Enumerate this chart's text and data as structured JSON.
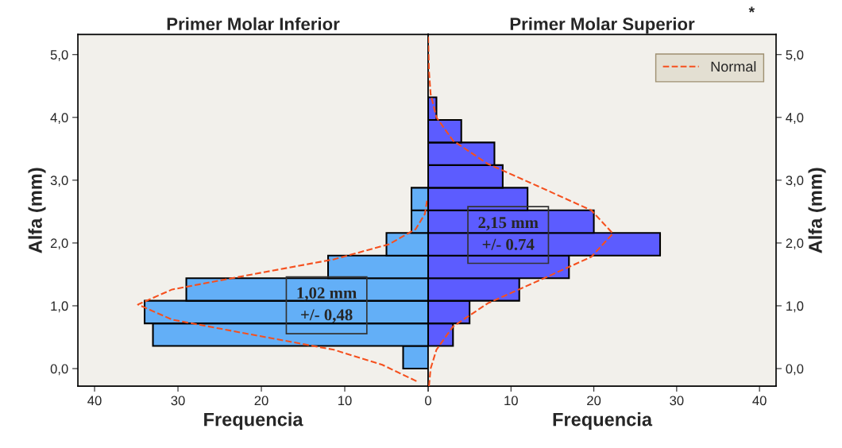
{
  "chart_data": [
    {
      "type": "histogram",
      "orientation": "horizontal",
      "title": "Primer Molar Inferior",
      "xlabel": "Frequencia",
      "ylabel": "Alfa (mm)",
      "series": [
        {
          "bins": [
            0,
            0.36,
            0.72,
            1.08,
            1.44,
            1.8,
            2.16,
            2.52,
            2.88
          ],
          "values": [
            3,
            33,
            34,
            29,
            12,
            5,
            2,
            2
          ],
          "color": "#63aff7"
        },
        {
          "type": "line",
          "color": "#f5501e",
          "line_style": "dashed",
          "x": [
            -0.2,
            0.06,
            0.3,
            0.54,
            0.78,
            1.02,
            1.26,
            1.5,
            1.74,
            1.98,
            2.22,
            2.46,
            2.7
          ],
          "values": [
            1.4,
            5.5,
            11.3,
            21.1,
            30.7,
            34.8,
            30.7,
            21.1,
            11.3,
            4.7,
            1.5,
            0.4,
            0.1
          ]
        }
      ],
      "xlim": [
        42,
        0
      ],
      "xticks": [
        40,
        30,
        20,
        10,
        0
      ],
      "ylim": [
        -0.28,
        5.32
      ],
      "yticks": [
        {
          "value": 0,
          "label": "0,0"
        },
        {
          "value": 1,
          "label": "1,0"
        },
        {
          "value": 2,
          "label": "2,0"
        },
        {
          "value": 3,
          "label": "3,0"
        },
        {
          "value": 4,
          "label": "4,0"
        },
        {
          "value": 5,
          "label": "5,0"
        }
      ],
      "annotations": [
        "1,02 mm\n+/- 0,48"
      ],
      "grid": false
    },
    {
      "type": "histogram",
      "orientation": "horizontal",
      "title": "Primer Molar Superior",
      "xlabel": "Frequencia",
      "ylabel": "Alfa (mm)",
      "series": [
        {
          "bins": [
            0.36,
            0.72,
            1.08,
            1.44,
            1.8,
            2.16,
            2.52,
            2.88,
            3.24,
            3.6,
            3.96,
            4.32
          ],
          "values": [
            3,
            5,
            11,
            17,
            28,
            20,
            12,
            9,
            8,
            4,
            1
          ],
          "color": "#5c5cff"
        },
        {
          "type": "line",
          "name": "Normal",
          "color": "#f5501e",
          "line_style": "dashed",
          "x": [
            -0.28,
            0.0,
            0.3,
            0.67,
            1.04,
            1.41,
            1.78,
            2.15,
            2.52,
            2.89,
            3.26,
            3.63,
            4.0,
            4.37,
            4.74,
            5.3
          ],
          "values": [
            0.1,
            0.3,
            1.0,
            3.0,
            7.2,
            13.5,
            19.7,
            22.3,
            19.7,
            13.5,
            7.2,
            3.0,
            1.0,
            0.3,
            0.1,
            0
          ]
        }
      ],
      "xlim": [
        0,
        42
      ],
      "xticks": [
        {
          "value": 0,
          "label": null
        },
        10,
        20,
        30,
        40
      ],
      "ylim": [
        -0.28,
        5.32
      ],
      "yticks": [
        {
          "value": 0,
          "label": "0,0"
        },
        {
          "value": 1,
          "label": "1,0"
        },
        {
          "value": 2,
          "label": "2,0"
        },
        {
          "value": 3,
          "label": "3,0"
        },
        {
          "value": 4,
          "label": "4,0"
        },
        {
          "value": 5,
          "label": "5,0"
        }
      ],
      "annotations": [
        "2,15 mm\n+/- 0.74",
        "*"
      ],
      "grid": false,
      "legend": "top right"
    }
  ]
}
